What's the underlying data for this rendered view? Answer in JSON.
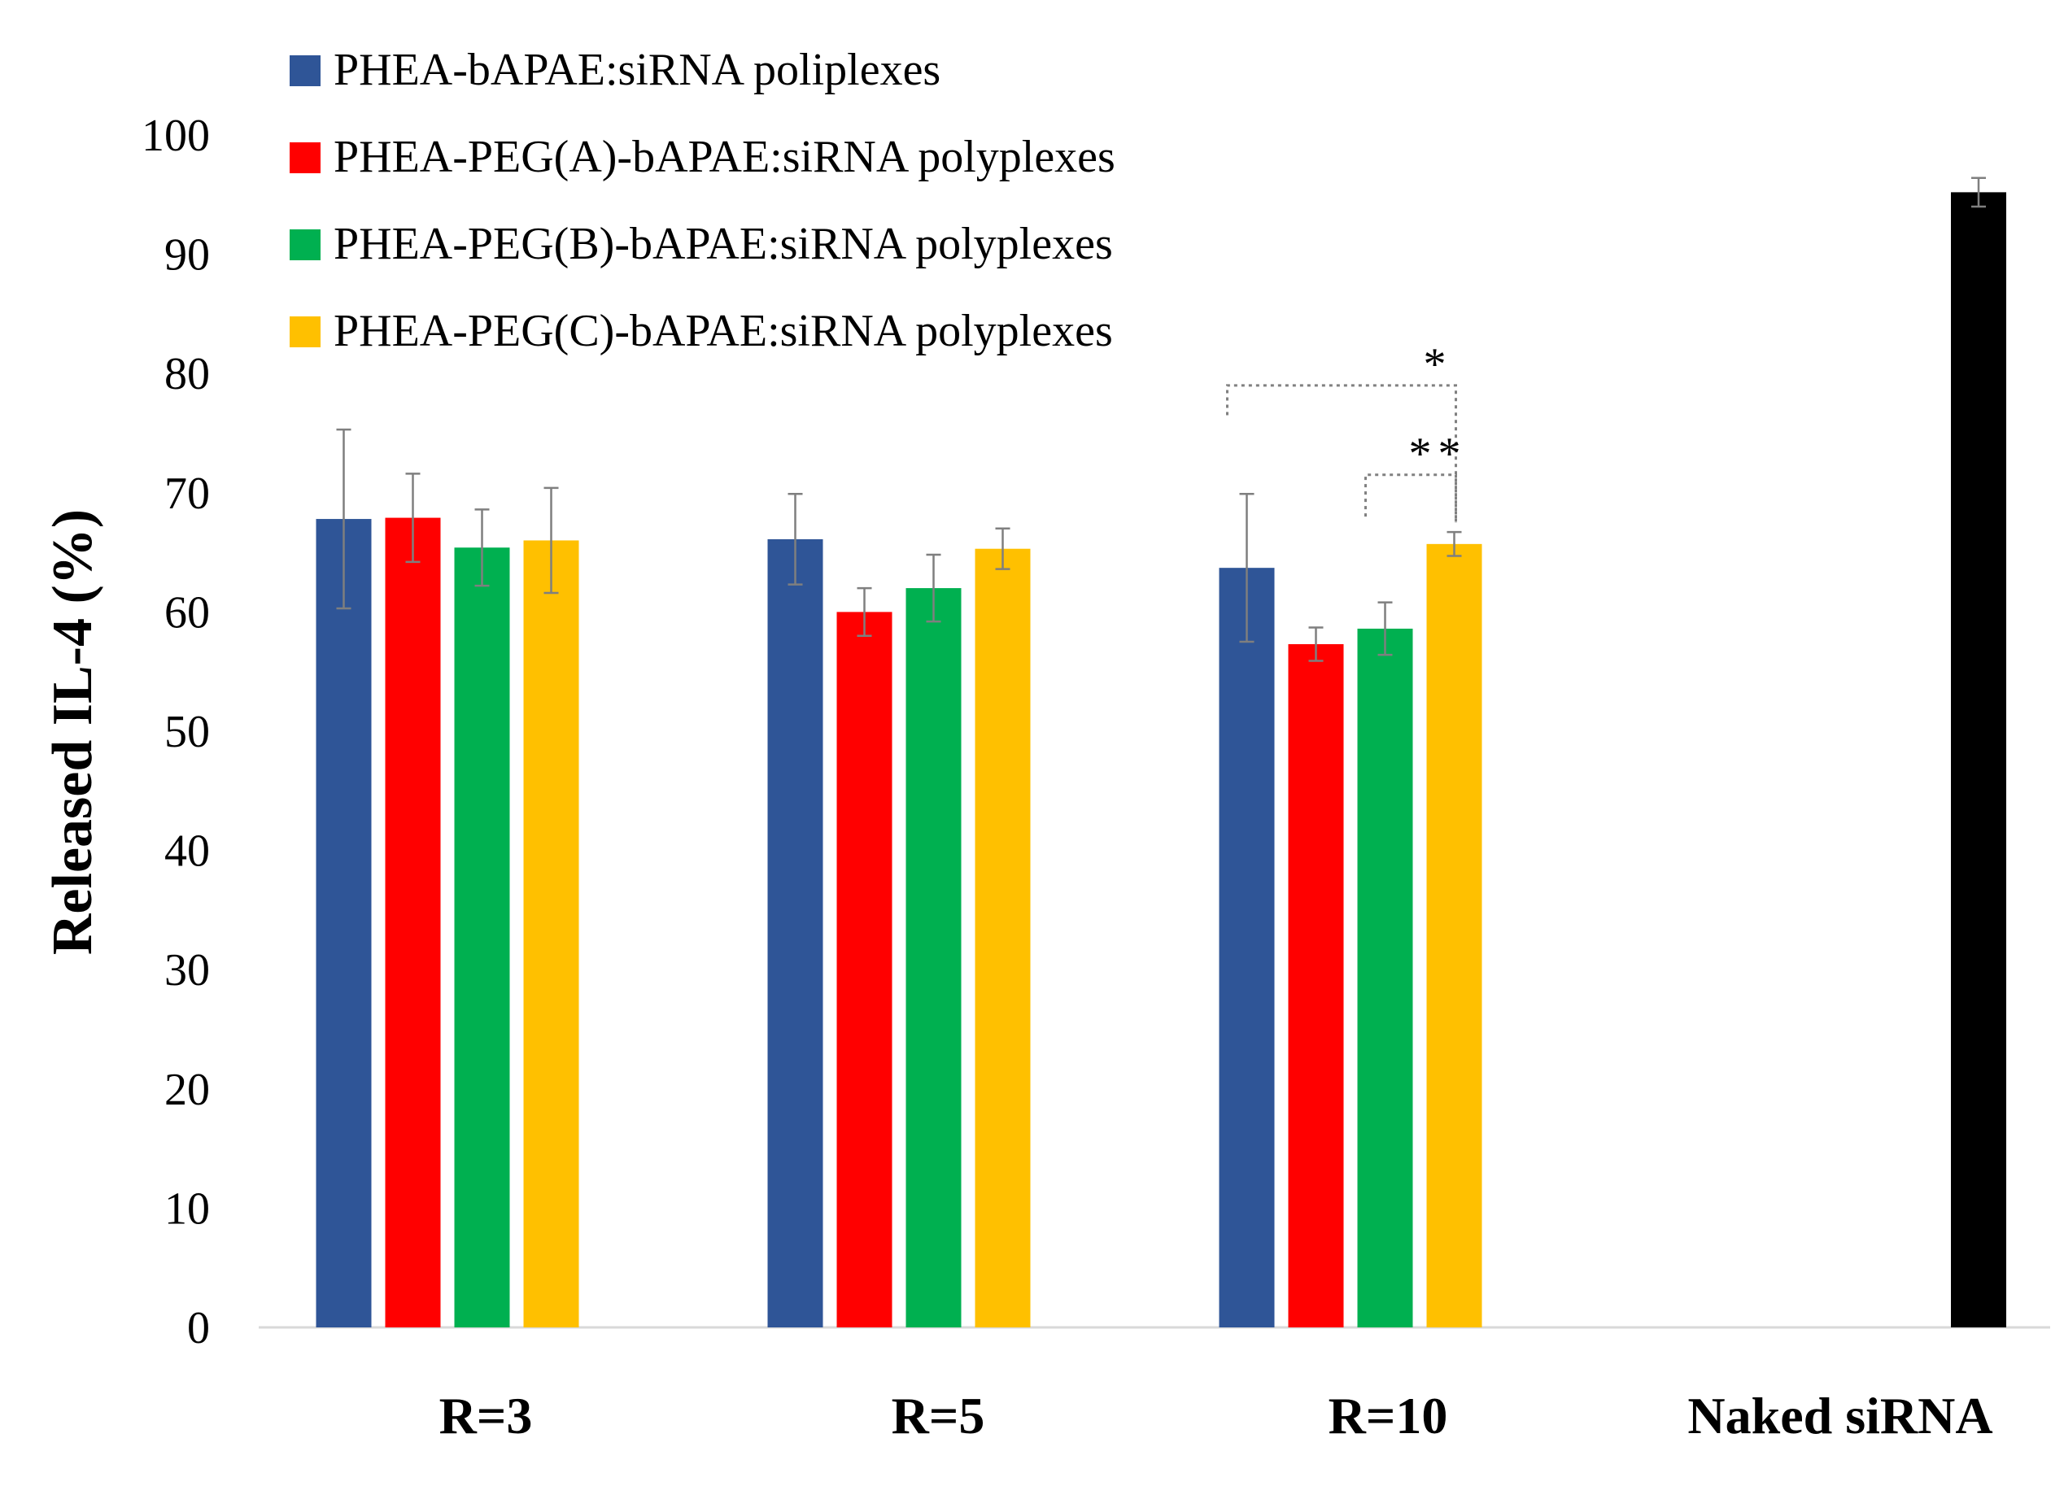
{
  "chart_data": {
    "type": "bar",
    "title": "",
    "xlabel": "",
    "ylabel": "Released IL-4 (%)",
    "ylim": [
      0,
      100
    ],
    "yticks": [
      0,
      10,
      20,
      30,
      40,
      50,
      60,
      70,
      80,
      90,
      100
    ],
    "grid": false,
    "legend_position": "top-left",
    "groups": [
      {
        "label": "R=3",
        "bars": [
          {
            "series": 0,
            "value": 67.8,
            "error": 7.5
          },
          {
            "series": 1,
            "value": 67.9,
            "error": 3.7
          },
          {
            "series": 2,
            "value": 65.4,
            "error": 3.2
          },
          {
            "series": 3,
            "value": 66.0,
            "error": 4.4
          }
        ]
      },
      {
        "label": "R=5",
        "bars": [
          {
            "series": 0,
            "value": 66.1,
            "error": 3.8
          },
          {
            "series": 1,
            "value": 60.0,
            "error": 2.0
          },
          {
            "series": 2,
            "value": 62.0,
            "error": 2.8
          },
          {
            "series": 3,
            "value": 65.3,
            "error": 1.7
          }
        ]
      },
      {
        "label": "R=10",
        "bars": [
          {
            "series": 0,
            "value": 63.7,
            "error": 6.2
          },
          {
            "series": 1,
            "value": 57.3,
            "error": 1.4
          },
          {
            "series": 2,
            "value": 58.6,
            "error": 2.2
          },
          {
            "series": 3,
            "value": 65.7,
            "error": 1.0
          }
        ]
      },
      {
        "label": "Naked siRNA",
        "bars": [
          {
            "series": 4,
            "value": 95.2,
            "error": 1.2
          }
        ]
      }
    ],
    "series": [
      {
        "name": "PHEA-bAPAE:siRNA poliplexes",
        "color": "#2f5597",
        "in_legend": true
      },
      {
        "name": "PHEA-PEG(A)-bAPAE:siRNA polyplexes",
        "color": "#ff0000",
        "in_legend": true
      },
      {
        "name": "PHEA-PEG(B)-bAPAE:siRNA polyplexes",
        "color": "#00b050",
        "in_legend": true
      },
      {
        "name": "PHEA-PEG(C)-bAPAE:siRNA polyplexes",
        "color": "#ffc000",
        "in_legend": true
      },
      {
        "name": "Naked siRNA",
        "color": "#000000",
        "in_legend": false
      }
    ],
    "annotations": [
      {
        "text": "*",
        "group": 2,
        "from_series": 0,
        "to_series": 3
      },
      {
        "text": "**",
        "group": 2,
        "from_series": 2,
        "to_series": 3
      }
    ]
  }
}
